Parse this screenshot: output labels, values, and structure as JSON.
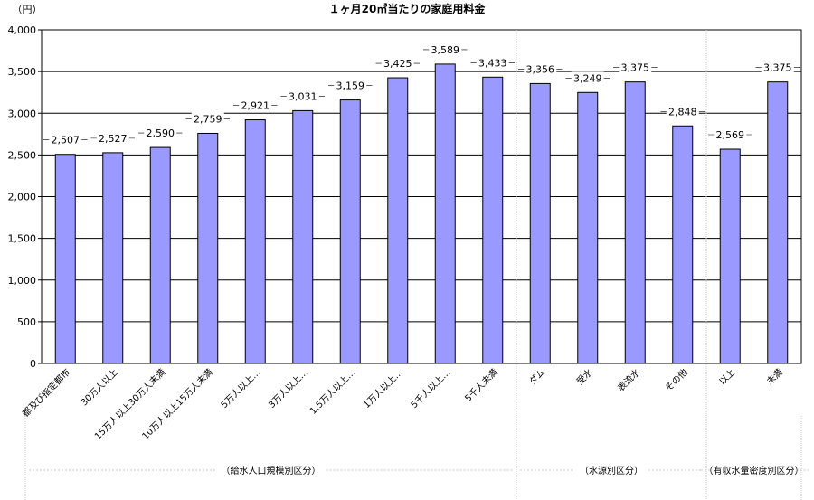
{
  "chart_data": {
    "type": "bar",
    "title": "１ヶ月20㎥当たりの家庭用料金",
    "ylabel": "（円）",
    "ylim": [
      0,
      4000
    ],
    "yticks": [
      "0",
      "500",
      "1,000",
      "1,500",
      "2,000",
      "2,500",
      "3,000",
      "3,500",
      "4,000"
    ],
    "grid": true,
    "legend": "none",
    "categories": [
      "都及び指定都市",
      "30万人以上",
      "15万人以上30万人未満",
      "10万人以上15万人未満",
      "5万人以上…",
      "3万人以上…",
      "1.5万人以上…",
      "1万人以上…",
      "5千人以上…",
      "5千人未満",
      "ダム",
      "受水",
      "表流水",
      "その他",
      "以上",
      "未満"
    ],
    "values": [
      2507,
      2527,
      2590,
      2759,
      2921,
      3031,
      3159,
      3425,
      3589,
      3433,
      3356,
      3249,
      3375,
      2848,
      2569,
      3375
    ],
    "value_labels": [
      "2,507",
      "2,527",
      "2,590",
      "2,759",
      "2,921",
      "3,031",
      "3,159",
      "3,425",
      "3,589",
      "3,433",
      "3,356",
      "3,249",
      "3,375",
      "2,848",
      "2,569",
      "3,375"
    ],
    "bar_color": "#9999ff",
    "groups": [
      {
        "label": "（給水人口規模別区分）",
        "start": 0,
        "end": 9
      },
      {
        "label": "（水源別区分）",
        "start": 10,
        "end": 13
      },
      {
        "label": "（有収水量密度別区分）",
        "start": 14,
        "end": 15
      }
    ]
  }
}
